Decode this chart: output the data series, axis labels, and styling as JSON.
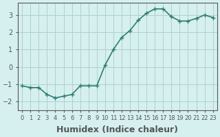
{
  "x": [
    0,
    1,
    2,
    3,
    4,
    5,
    6,
    7,
    8,
    9,
    10,
    11,
    12,
    13,
    14,
    15,
    16,
    17,
    18,
    19,
    20,
    21,
    22,
    23
  ],
  "y": [
    -1.1,
    -1.2,
    -1.2,
    -1.6,
    -1.8,
    -1.7,
    -1.6,
    -1.1,
    -1.1,
    -1.1,
    0.1,
    1.0,
    1.7,
    2.1,
    2.7,
    3.1,
    3.35,
    3.35,
    2.9,
    2.65,
    2.65,
    2.8,
    3.0,
    2.85
  ],
  "line_color": "#2e7d6e",
  "marker": "+",
  "background_color": "#d6f0f0",
  "grid_color": "#b0cece",
  "axis_color": "#555555",
  "xlabel": "Humidex (Indice chaleur)",
  "xlabel_fontsize": 9,
  "yticks": [
    -2,
    -1,
    0,
    1,
    2,
    3
  ],
  "xtick_labels": [
    "0",
    "1",
    "2",
    "3",
    "4",
    "5",
    "6",
    "7",
    "8",
    "9",
    "10",
    "11",
    "12",
    "13",
    "14",
    "15",
    "16",
    "17",
    "18",
    "19",
    "20",
    "21",
    "22",
    "23"
  ],
  "ylim": [
    -2.5,
    3.7
  ],
  "xlim": [
    -0.5,
    23.5
  ],
  "tick_fontsize": 7,
  "linewidth": 1.2,
  "markersize": 4
}
